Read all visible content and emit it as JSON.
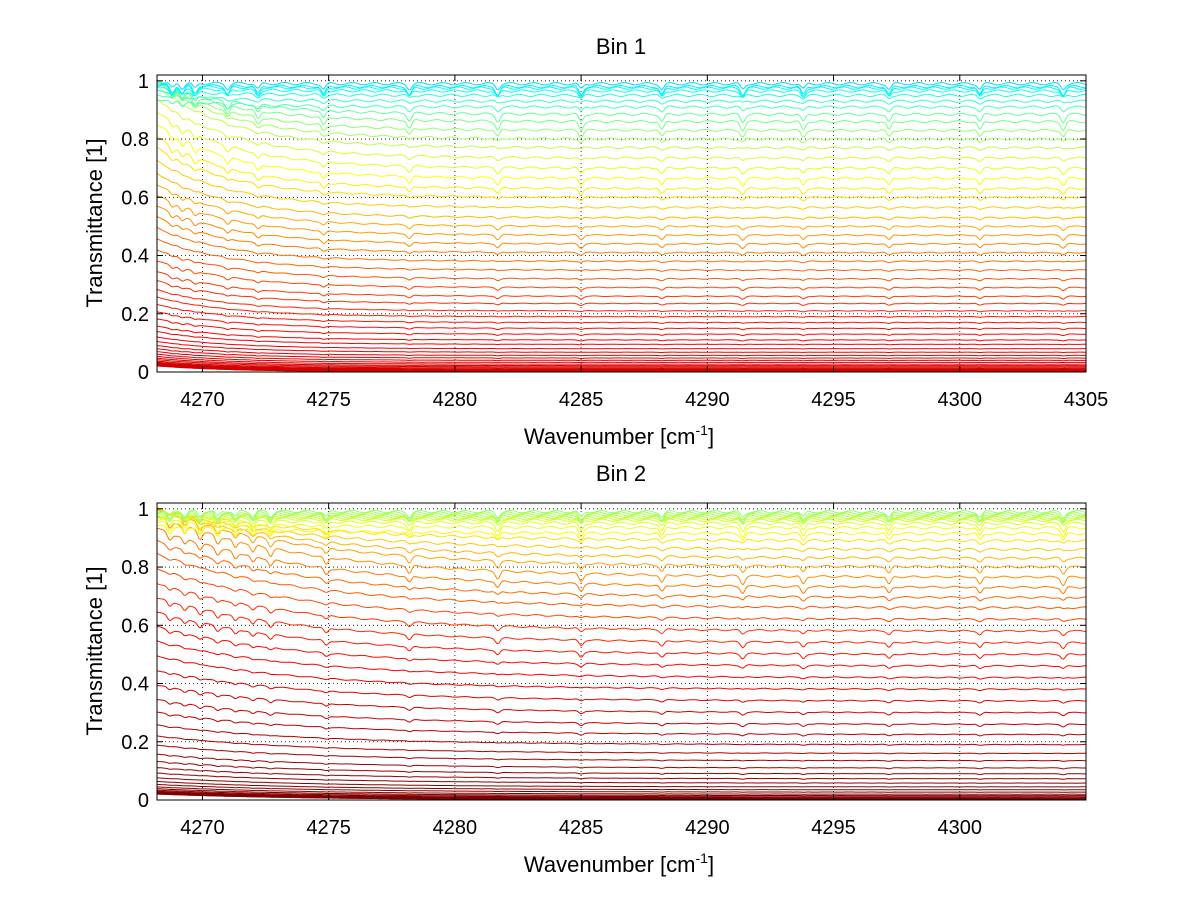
{
  "chart_data": [
    {
      "type": "line",
      "title": "Bin 1",
      "xlabel": "Wavenumber [cm",
      "xlabel_sup": "-1",
      "xlabel_end": "]",
      "ylabel": "Transmittance [1]",
      "xlim": [
        4268.2,
        4305
      ],
      "ylim": [
        0,
        1.02
      ],
      "xticks": [
        4270,
        4275,
        4280,
        4285,
        4290,
        4295,
        4300,
        4305
      ],
      "xtick_labels": [
        "4270",
        "4275",
        "4280",
        "4285",
        "4290",
        "4295",
        "4300",
        "4305"
      ],
      "yticks": [
        0,
        0.2,
        0.4,
        0.6,
        0.8,
        1
      ],
      "ytick_labels": [
        "0",
        "0.2",
        "0.4",
        "0.6",
        "0.8",
        "1"
      ],
      "grid": true,
      "curve_count": 60,
      "baseline_levels": [
        0.99,
        0.98,
        0.975,
        0.965,
        0.95,
        0.93,
        0.91,
        0.885,
        0.86,
        0.83,
        0.8,
        0.77,
        0.735,
        0.7,
        0.665,
        0.63,
        0.6,
        0.565,
        0.53,
        0.5,
        0.47,
        0.44,
        0.41,
        0.38,
        0.35,
        0.32,
        0.29,
        0.26,
        0.235,
        0.21,
        0.19,
        0.17,
        0.15,
        0.13,
        0.11,
        0.095,
        0.08,
        0.068,
        0.057,
        0.048,
        0.04,
        0.033,
        0.027,
        0.022,
        0.018,
        0.014,
        0.011,
        0.009,
        0.007,
        0.005
      ],
      "edge_drop_cm": 3,
      "absorption_lines_cm": [
        4268.8,
        4269.2,
        4269.7,
        4271.0,
        4272.2,
        4274.8,
        4278.2,
        4281.7,
        4285.0,
        4288.2,
        4291.4,
        4293.8,
        4297.2,
        4300.8,
        4304.1
      ],
      "colormap": "jet"
    },
    {
      "type": "line",
      "title": "Bin 2",
      "xlabel": "Wavenumber [cm",
      "xlabel_sup": "-1",
      "xlabel_end": "]",
      "ylabel": "Transmittance [1]",
      "xlim": [
        4268.2,
        4305
      ],
      "ylim": [
        0,
        1.02
      ],
      "xticks": [
        4270,
        4275,
        4280,
        4285,
        4290,
        4295,
        4300
      ],
      "xtick_labels": [
        "4270",
        "4275",
        "4280",
        "4285",
        "4290",
        "4295",
        "4300"
      ],
      "yticks": [
        0,
        0.2,
        0.4,
        0.6,
        0.8,
        1
      ],
      "ytick_labels": [
        "0",
        "0.2",
        "0.4",
        "0.6",
        "0.8",
        "1"
      ],
      "grid": true,
      "curve_count": 60,
      "baseline_levels": [
        0.99,
        0.985,
        0.98,
        0.975,
        0.97,
        0.965,
        0.96,
        0.95,
        0.935,
        0.915,
        0.89,
        0.86,
        0.83,
        0.8,
        0.765,
        0.73,
        0.695,
        0.66,
        0.62,
        0.58,
        0.54,
        0.5,
        0.46,
        0.42,
        0.38,
        0.34,
        0.3,
        0.26,
        0.225,
        0.19,
        0.16,
        0.135,
        0.11,
        0.09,
        0.073,
        0.058,
        0.045,
        0.035,
        0.027,
        0.02,
        0.015,
        0.011,
        0.008,
        0.006,
        0.004
      ],
      "edge_drop_cm": 6,
      "absorption_lines_cm": [
        4268.7,
        4269.3,
        4269.9,
        4270.6,
        4271.3,
        4272.0,
        4272.7,
        4274.9,
        4278.2,
        4281.7,
        4285.0,
        4288.2,
        4291.4,
        4293.8,
        4297.2,
        4300.8,
        4304.1
      ],
      "colormap": "jet"
    }
  ]
}
